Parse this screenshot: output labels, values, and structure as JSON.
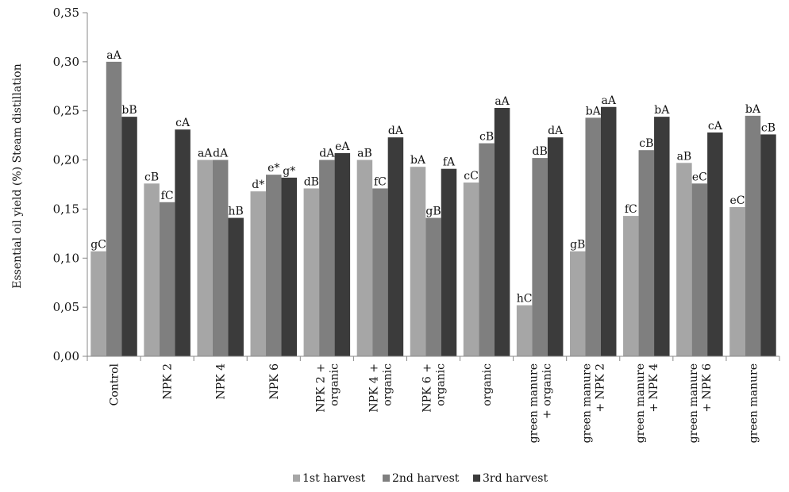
{
  "chart_data": {
    "type": "bar",
    "title": "",
    "xlabel": "",
    "ylabel": "Essential oil yield (%) Steam distillation",
    "ylim": [
      0,
      0.35
    ],
    "yticks": [
      "0,00",
      "0,05",
      "0,10",
      "0,15",
      "0,20",
      "0,25",
      "0,30",
      "0,35"
    ],
    "grid": false,
    "legend_position": "bottom",
    "categories": [
      [
        "Control"
      ],
      [
        "NPK 2"
      ],
      [
        "NPK 4"
      ],
      [
        "NPK 6"
      ],
      [
        "NPK 2 +",
        "organic"
      ],
      [
        "NPK 4 +",
        "organic"
      ],
      [
        "NPK 6 +",
        "organic"
      ],
      [
        "organic"
      ],
      [
        "green manure",
        "+ organic"
      ],
      [
        "green manure",
        "+ NPK 2"
      ],
      [
        "green manure",
        "+ NPK 4"
      ],
      [
        "green manure",
        "+ NPK 6"
      ],
      [
        "green manure"
      ]
    ],
    "series": [
      {
        "name": "1st harvest",
        "color": "#a6a6a6",
        "values": [
          0.107,
          0.176,
          0.2,
          0.168,
          0.171,
          0.2,
          0.193,
          0.177,
          0.052,
          0.107,
          0.143,
          0.197,
          0.152
        ],
        "labels": [
          "gC",
          "cB",
          "aA",
          "d*",
          "dB",
          "aB",
          "bA",
          "cC",
          "hC",
          "gB",
          "fC",
          "aB",
          "eC"
        ]
      },
      {
        "name": "2nd harvest",
        "color": "#7f7f7f",
        "values": [
          0.3,
          0.157,
          0.2,
          0.185,
          0.2,
          0.171,
          0.141,
          0.217,
          0.202,
          0.243,
          0.21,
          0.176,
          0.245
        ],
        "labels": [
          "aA",
          "fC",
          "dA",
          "e*",
          "dA",
          "fC",
          "gB",
          "cB",
          "dB",
          "bA",
          "cB",
          "eC",
          "bA"
        ]
      },
      {
        "name": "3rd harvest",
        "color": "#3b3b3b",
        "values": [
          0.244,
          0.231,
          0.141,
          0.182,
          0.207,
          0.223,
          0.191,
          0.253,
          0.223,
          0.254,
          0.244,
          0.228,
          0.226
        ],
        "labels": [
          "bB",
          "cA",
          "hB",
          "g*",
          "eA",
          "dA",
          "fA",
          "aA",
          "dA",
          "aA",
          "bA",
          "cA",
          "cB"
        ]
      }
    ]
  }
}
